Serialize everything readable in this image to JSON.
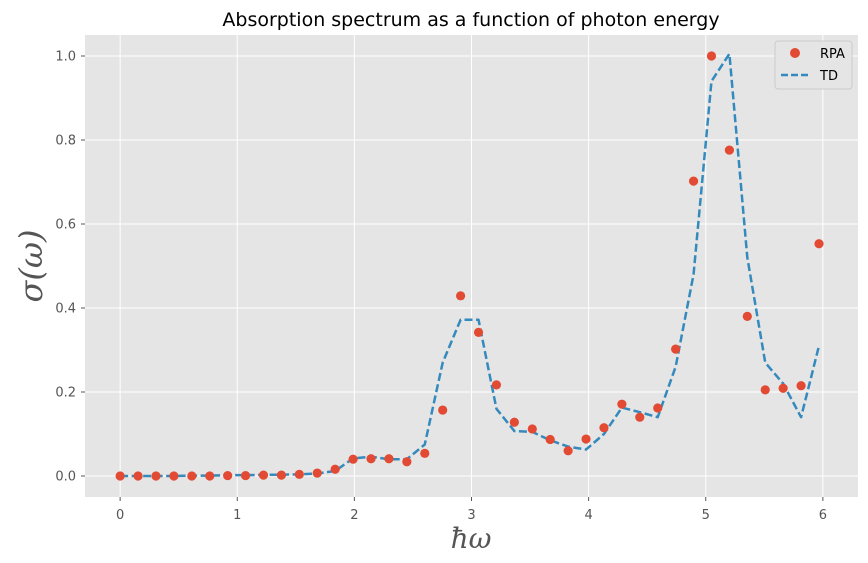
{
  "chart_data": {
    "type": "line",
    "title": "Absorption spectrum as a function of photon energy",
    "xlabel": "ħω",
    "ylabel": "σ(ω)",
    "xlim": [
      -0.3,
      6.3
    ],
    "ylim": [
      -0.05,
      1.05
    ],
    "xticks": [
      0,
      1,
      2,
      3,
      4,
      5,
      6
    ],
    "xtick_labels": [
      "0",
      "1",
      "2",
      "3",
      "4",
      "5",
      "6"
    ],
    "yticks": [
      0.0,
      0.2,
      0.4,
      0.6,
      0.8,
      1.0
    ],
    "ytick_labels": [
      "0.0",
      "0.2",
      "0.4",
      "0.6",
      "0.8",
      "1.0"
    ],
    "grid": true,
    "legend_position": "top-right",
    "series": [
      {
        "name": "RPA",
        "style": "markers",
        "color": "#E24A33",
        "x": [
          0.0,
          0.153,
          0.306,
          0.459,
          0.612,
          0.765,
          0.918,
          1.071,
          1.224,
          1.377,
          1.53,
          1.683,
          1.836,
          1.989,
          2.142,
          2.295,
          2.448,
          2.601,
          2.754,
          2.907,
          3.06,
          3.213,
          3.366,
          3.519,
          3.672,
          3.825,
          3.978,
          4.131,
          4.284,
          4.437,
          4.59,
          4.743,
          4.896,
          5.049,
          5.202,
          5.355,
          5.508,
          5.661,
          5.814,
          5.967
        ],
        "y": [
          0.0,
          0.0,
          0.0,
          0.0,
          0.0,
          0.0,
          0.001,
          0.001,
          0.002,
          0.002,
          0.004,
          0.007,
          0.016,
          0.04,
          0.041,
          0.041,
          0.034,
          0.054,
          0.157,
          0.429,
          0.342,
          0.217,
          0.128,
          0.112,
          0.087,
          0.06,
          0.088,
          0.115,
          0.171,
          0.14,
          0.162,
          0.302,
          0.702,
          1.0,
          0.776,
          0.38,
          0.205,
          0.209,
          0.215,
          0.553
        ]
      },
      {
        "name": "TD",
        "style": "dashed-line",
        "color": "#348ABD",
        "x": [
          0.0,
          0.153,
          0.306,
          0.459,
          0.612,
          0.765,
          0.918,
          1.071,
          1.224,
          1.377,
          1.53,
          1.683,
          1.836,
          1.989,
          2.142,
          2.295,
          2.448,
          2.601,
          2.754,
          2.907,
          3.06,
          3.213,
          3.366,
          3.519,
          3.672,
          3.825,
          3.978,
          4.131,
          4.284,
          4.437,
          4.59,
          4.743,
          4.896,
          5.049,
          5.202,
          5.355,
          5.508,
          5.661,
          5.814,
          5.967
        ],
        "y": [
          0.0,
          0.0,
          0.0,
          0.0,
          0.001,
          0.001,
          0.002,
          0.002,
          0.003,
          0.003,
          0.004,
          0.006,
          0.012,
          0.042,
          0.046,
          0.04,
          0.04,
          0.075,
          0.27,
          0.372,
          0.372,
          0.16,
          0.107,
          0.105,
          0.085,
          0.07,
          0.063,
          0.1,
          0.163,
          0.152,
          0.14,
          0.26,
          0.48,
          0.94,
          1.005,
          0.52,
          0.27,
          0.22,
          0.14,
          0.31
        ]
      }
    ]
  }
}
